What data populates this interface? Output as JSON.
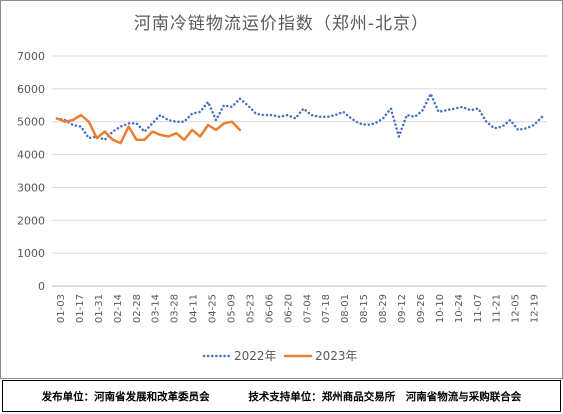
{
  "chart_data": {
    "type": "line",
    "title": "河南冷链物流运价指数（郑州-北京）",
    "ylim": [
      0,
      7000
    ],
    "yticks": [
      0,
      1000,
      2000,
      3000,
      4000,
      5000,
      6000,
      7000
    ],
    "grid": true,
    "legend_position": "bottom",
    "x_tick_labels": [
      "01-03",
      "01-17",
      "01-31",
      "02-14",
      "02-28",
      "03-14",
      "03-28",
      "04-11",
      "04-25",
      "05-09",
      "05-23",
      "06-06",
      "06-20",
      "07-04",
      "07-18",
      "08-01",
      "08-15",
      "08-29",
      "09-12",
      "09-26",
      "10-10",
      "10-24",
      "11-07",
      "11-21",
      "12-05",
      "12-19"
    ],
    "series": [
      {
        "name": "2022年",
        "color": "#4472c4",
        "style": "dotted",
        "values": [
          5100,
          5050,
          4900,
          4850,
          4500,
          4550,
          4450,
          4700,
          4850,
          4950,
          4950,
          4700,
          4950,
          5200,
          5050,
          5000,
          5000,
          5250,
          5300,
          5600,
          5050,
          5500,
          5450,
          5700,
          5500,
          5250,
          5200,
          5200,
          5150,
          5200,
          5100,
          5400,
          5200,
          5150,
          5150,
          5200,
          5300,
          5100,
          4950,
          4900,
          4950,
          5100,
          5400,
          4550,
          5200,
          5150,
          5350,
          5850,
          5300,
          5350,
          5400,
          5450,
          5350,
          5400,
          5000,
          4800,
          4850,
          5050,
          4750,
          4800,
          4900,
          5150
        ]
      },
      {
        "name": "2023年",
        "color": "#ed7d31",
        "style": "solid",
        "values": [
          5100,
          5000,
          5050,
          5200,
          5000,
          4500,
          4700,
          4450,
          4350,
          4850,
          4450,
          4450,
          4700,
          4600,
          4550,
          4650,
          4450,
          4750,
          4550,
          4900,
          4750,
          4950,
          5000,
          4750
        ]
      }
    ]
  },
  "footer": {
    "publisher": "发布单位：河南省发展和改革委员会",
    "support": "技术支持单位：郑州商品交易所　河南省物流与采购联合会"
  }
}
